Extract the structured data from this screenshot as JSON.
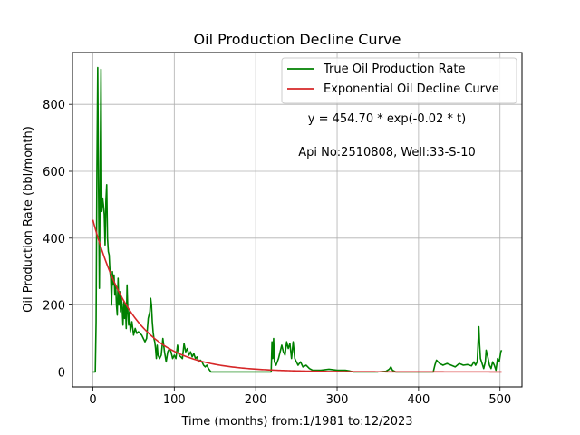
{
  "chart_data": {
    "type": "line",
    "title": "Oil Production Decline Curve",
    "xlabel": "Time (months) from:1/1981 to:12/2023",
    "ylabel": "Oil Production Rate (bbl/month)",
    "xlim": [
      -25,
      527
    ],
    "ylim": [
      -45,
      955
    ],
    "x_ticks": [
      0,
      100,
      200,
      300,
      400,
      500
    ],
    "y_ticks": [
      0,
      200,
      400,
      600,
      800
    ],
    "grid": true,
    "legend_position": "top-right",
    "annotations": [
      "y = 454.70 * exp(-0.02 * t)",
      "Api No:2510808, Well:33-S-10"
    ],
    "series": [
      {
        "name": "True Oil Production Rate",
        "color": "#008000",
        "kind": "observed",
        "points": [
          [
            0,
            0
          ],
          [
            3,
            0
          ],
          [
            4,
            150
          ],
          [
            5,
            610
          ],
          [
            6,
            910
          ],
          [
            7,
            560
          ],
          [
            8,
            250
          ],
          [
            9,
            600
          ],
          [
            10,
            905
          ],
          [
            11,
            480
          ],
          [
            12,
            520
          ],
          [
            13,
            500
          ],
          [
            14,
            470
          ],
          [
            15,
            380
          ],
          [
            16,
            510
          ],
          [
            17,
            560
          ],
          [
            18,
            400
          ],
          [
            19,
            360
          ],
          [
            20,
            350
          ],
          [
            21,
            300
          ],
          [
            22,
            280
          ],
          [
            23,
            200
          ],
          [
            24,
            300
          ],
          [
            25,
            260
          ],
          [
            26,
            290
          ],
          [
            27,
            230
          ],
          [
            28,
            260
          ],
          [
            29,
            200
          ],
          [
            30,
            170
          ],
          [
            31,
            280
          ],
          [
            32,
            200
          ],
          [
            33,
            240
          ],
          [
            34,
            180
          ],
          [
            35,
            220
          ],
          [
            36,
            190
          ],
          [
            37,
            140
          ],
          [
            38,
            210
          ],
          [
            39,
            160
          ],
          [
            40,
            200
          ],
          [
            41,
            130
          ],
          [
            42,
            260
          ],
          [
            43,
            180
          ],
          [
            44,
            140
          ],
          [
            45,
            180
          ],
          [
            46,
            120
          ],
          [
            48,
            150
          ],
          [
            50,
            110
          ],
          [
            52,
            130
          ],
          [
            54,
            115
          ],
          [
            56,
            120
          ],
          [
            58,
            115
          ],
          [
            60,
            110
          ],
          [
            62,
            100
          ],
          [
            64,
            90
          ],
          [
            66,
            100
          ],
          [
            68,
            160
          ],
          [
            70,
            180
          ],
          [
            71,
            220
          ],
          [
            72,
            200
          ],
          [
            73,
            150
          ],
          [
            74,
            120
          ],
          [
            75,
            100
          ],
          [
            76,
            90
          ],
          [
            77,
            70
          ],
          [
            78,
            40
          ],
          [
            79,
            80
          ],
          [
            80,
            50
          ],
          [
            82,
            40
          ],
          [
            84,
            50
          ],
          [
            86,
            100
          ],
          [
            88,
            60
          ],
          [
            90,
            30
          ],
          [
            92,
            60
          ],
          [
            94,
            70
          ],
          [
            96,
            60
          ],
          [
            98,
            40
          ],
          [
            100,
            50
          ],
          [
            102,
            40
          ],
          [
            104,
            80
          ],
          [
            106,
            50
          ],
          [
            108,
            45
          ],
          [
            110,
            40
          ],
          [
            112,
            85
          ],
          [
            114,
            60
          ],
          [
            116,
            70
          ],
          [
            118,
            50
          ],
          [
            120,
            60
          ],
          [
            122,
            45
          ],
          [
            124,
            55
          ],
          [
            126,
            40
          ],
          [
            128,
            45
          ],
          [
            130,
            30
          ],
          [
            132,
            35
          ],
          [
            134,
            30
          ],
          [
            136,
            20
          ],
          [
            138,
            15
          ],
          [
            140,
            20
          ],
          [
            142,
            10
          ],
          [
            145,
            0
          ],
          [
            150,
            0
          ],
          [
            160,
            0
          ],
          [
            170,
            0
          ],
          [
            180,
            0
          ],
          [
            190,
            0
          ],
          [
            200,
            0
          ],
          [
            210,
            0
          ],
          [
            219,
            0
          ],
          [
            220,
            90
          ],
          [
            221,
            40
          ],
          [
            222,
            100
          ],
          [
            223,
            30
          ],
          [
            225,
            20
          ],
          [
            228,
            40
          ],
          [
            230,
            60
          ],
          [
            232,
            80
          ],
          [
            234,
            60
          ],
          [
            236,
            50
          ],
          [
            238,
            90
          ],
          [
            240,
            70
          ],
          [
            242,
            85
          ],
          [
            244,
            40
          ],
          [
            246,
            90
          ],
          [
            248,
            40
          ],
          [
            250,
            30
          ],
          [
            252,
            20
          ],
          [
            255,
            30
          ],
          [
            258,
            15
          ],
          [
            262,
            20
          ],
          [
            266,
            10
          ],
          [
            270,
            5
          ],
          [
            280,
            5
          ],
          [
            290,
            8
          ],
          [
            300,
            5
          ],
          [
            310,
            5
          ],
          [
            315,
            3
          ],
          [
            320,
            0
          ],
          [
            330,
            0
          ],
          [
            340,
            0
          ],
          [
            350,
            0
          ],
          [
            360,
            2
          ],
          [
            364,
            8
          ],
          [
            366,
            15
          ],
          [
            368,
            5
          ],
          [
            372,
            0
          ],
          [
            380,
            0
          ],
          [
            390,
            0
          ],
          [
            400,
            0
          ],
          [
            410,
            0
          ],
          [
            418,
            0
          ],
          [
            420,
            20
          ],
          [
            422,
            35
          ],
          [
            424,
            30
          ],
          [
            426,
            25
          ],
          [
            430,
            20
          ],
          [
            435,
            25
          ],
          [
            440,
            20
          ],
          [
            445,
            15
          ],
          [
            450,
            25
          ],
          [
            455,
            20
          ],
          [
            460,
            22
          ],
          [
            465,
            18
          ],
          [
            468,
            30
          ],
          [
            470,
            20
          ],
          [
            472,
            30
          ],
          [
            474,
            135
          ],
          [
            475,
            80
          ],
          [
            476,
            40
          ],
          [
            478,
            25
          ],
          [
            480,
            10
          ],
          [
            482,
            30
          ],
          [
            483,
            65
          ],
          [
            485,
            45
          ],
          [
            487,
            20
          ],
          [
            489,
            10
          ],
          [
            491,
            30
          ],
          [
            493,
            20
          ],
          [
            495,
            5
          ],
          [
            497,
            40
          ],
          [
            499,
            30
          ],
          [
            501,
            60
          ],
          [
            502,
            65
          ]
        ]
      },
      {
        "name": "Exponential Oil Decline Curve",
        "color": "#d62728",
        "kind": "model",
        "a": 454.7,
        "b": 0.02,
        "x_range": [
          0,
          502
        ]
      }
    ]
  }
}
